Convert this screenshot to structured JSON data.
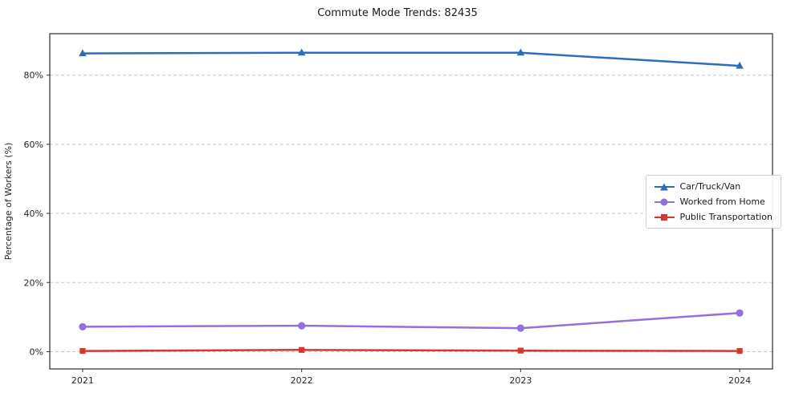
{
  "chart_data": {
    "type": "line",
    "title": "Commute Mode Trends: 82435",
    "xlabel": "",
    "ylabel": "Percentage of Workers (%)",
    "x": [
      2021,
      2022,
      2023,
      2024
    ],
    "x_tick_labels": [
      "2021",
      "2022",
      "2023",
      "2024"
    ],
    "y_ticks": [
      0,
      20,
      40,
      60,
      80
    ],
    "y_tick_labels": [
      "0%",
      "20%",
      "40%",
      "60%",
      "80%"
    ],
    "ylim": [
      -5,
      92
    ],
    "grid": "horizontal-dashed",
    "legend_position": "middle-right",
    "series": [
      {
        "name": "Car/Truck/Van",
        "color": "#2a6ebb",
        "marker": "triangle",
        "values": [
          86.3,
          86.5,
          86.5,
          82.7
        ]
      },
      {
        "name": "Worked from Home",
        "color": "#9370db",
        "marker": "circle",
        "values": [
          7.2,
          7.5,
          6.8,
          11.2
        ]
      },
      {
        "name": "Public Transportation",
        "color": "#d6372e",
        "marker": "square",
        "values": [
          0.2,
          0.5,
          0.3,
          0.2
        ]
      }
    ]
  }
}
